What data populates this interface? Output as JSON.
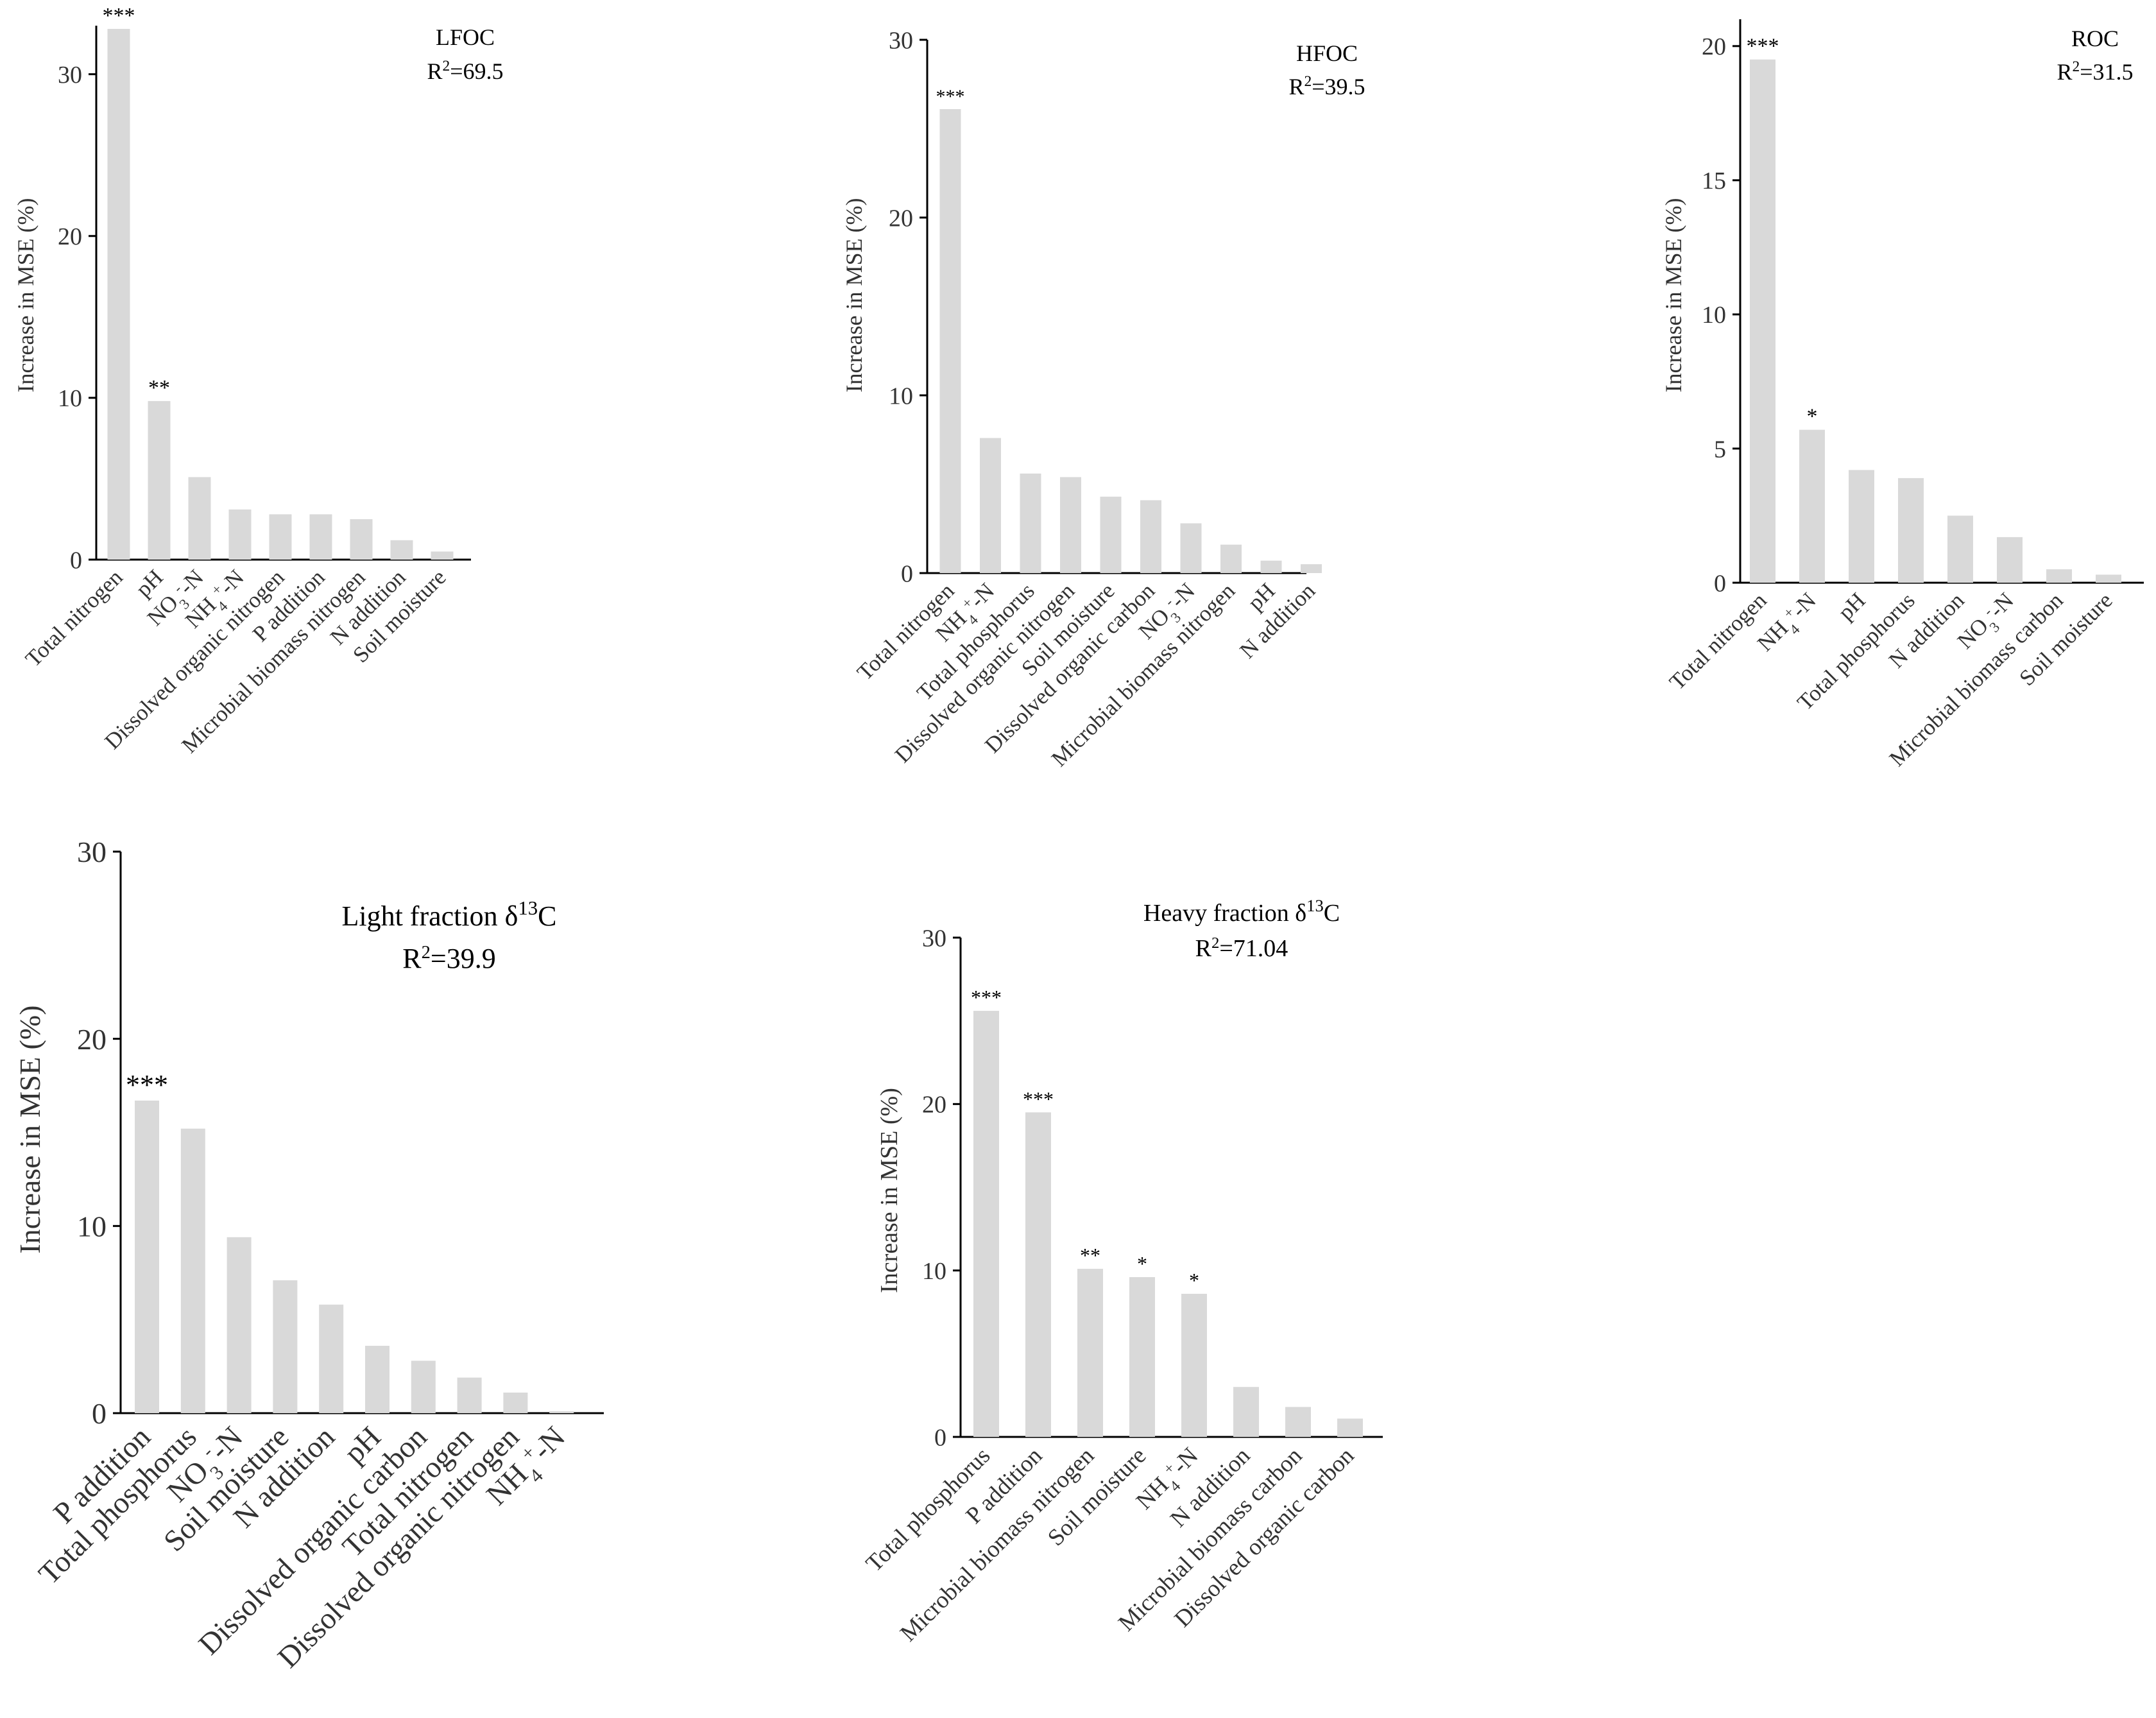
{
  "figure_title": "Random forest variable importance panels",
  "chart_data": [
    {
      "id": "lfoc",
      "type": "bar",
      "title": "LFOC",
      "r2_label": "R",
      "r2_sup": "2",
      "r2_value": "=69.5",
      "ylabel": "Increase in MSE (%)",
      "xlabel": "",
      "ylim": [
        0,
        33
      ],
      "yticks": [
        0,
        10,
        20,
        30
      ],
      "categories": [
        {
          "base": "Total nitrogen"
        },
        {
          "base": "pH"
        },
        {
          "base": "NO",
          "sub": "3",
          "sup": "-",
          "tail": "-N"
        },
        {
          "base": "NH",
          "sub": "4",
          "sup": "+",
          "tail": "-N"
        },
        {
          "base": "Dissolved organic nitrogen"
        },
        {
          "base": "P addition"
        },
        {
          "base": "Microbial biomass nitrogen"
        },
        {
          "base": "N addition"
        },
        {
          "base": "Soil moisture"
        }
      ],
      "values": [
        32.8,
        9.8,
        5.1,
        3.1,
        2.8,
        2.8,
        2.5,
        1.2,
        0.5
      ],
      "significance": [
        "***",
        "**",
        "",
        "",
        "",
        "",
        "",
        "",
        ""
      ]
    },
    {
      "id": "hfoc",
      "type": "bar",
      "title": "HFOC",
      "r2_label": "R",
      "r2_sup": "2",
      "r2_value": "=39.5",
      "ylabel": "Increase in MSE (%)",
      "xlabel": "",
      "ylim": [
        0,
        30
      ],
      "yticks": [
        0,
        10,
        20,
        30
      ],
      "categories": [
        {
          "base": "Total nitrogen"
        },
        {
          "base": "NH",
          "sub": "4",
          "sup": "+",
          "tail": "-N"
        },
        {
          "base": "Total phosphorus"
        },
        {
          "base": "Dissolved organic nitrogen"
        },
        {
          "base": "Soil moisture"
        },
        {
          "base": "Dissolved organic carbon"
        },
        {
          "base": "NO",
          "sub": "3",
          "sup": "-",
          "tail": "-N"
        },
        {
          "base": "Microbial biomass nitrogen"
        },
        {
          "base": "pH"
        },
        {
          "base": "N addition"
        }
      ],
      "values": [
        26.1,
        7.6,
        5.6,
        5.4,
        4.3,
        4.1,
        2.8,
        1.6,
        0.7,
        0.5
      ],
      "significance": [
        "***",
        "",
        "",
        "",
        "",
        "",
        "",
        "",
        "",
        ""
      ]
    },
    {
      "id": "roc",
      "type": "bar",
      "title": "ROC",
      "r2_label": "R",
      "r2_sup": "2",
      "r2_value": "=31.5",
      "ylabel": "Increase in MSE (%)",
      "xlabel": "",
      "ylim": [
        0,
        21
      ],
      "yticks": [
        0,
        5,
        10,
        15,
        20
      ],
      "categories": [
        {
          "base": "Total nitrogen"
        },
        {
          "base": "NH",
          "sub": "4",
          "sup": "+",
          "tail": "-N"
        },
        {
          "base": "pH"
        },
        {
          "base": "Total phosphorus"
        },
        {
          "base": "N addition"
        },
        {
          "base": "NO",
          "sub": "3",
          "sup": "-",
          "tail": "-N"
        },
        {
          "base": "Microbial biomass carbon"
        },
        {
          "base": "Soil moisture"
        }
      ],
      "values": [
        19.5,
        5.7,
        4.2,
        3.9,
        2.5,
        1.7,
        0.5,
        0.3
      ],
      "significance": [
        "***",
        "*",
        "",
        "",
        "",
        "",
        "",
        ""
      ]
    },
    {
      "id": "light-fraction",
      "type": "bar",
      "title": "Light fraction  δ",
      "title_sup": "13",
      "title_tail": "C",
      "r2_label": "R",
      "r2_sup": "2",
      "r2_value": "=39.9",
      "ylabel": "Increase in MSE (%)",
      "xlabel": "",
      "ylim": [
        0,
        30
      ],
      "yticks": [
        0,
        10,
        20,
        30
      ],
      "categories": [
        {
          "base": "P addition"
        },
        {
          "base": "Total phosphorus"
        },
        {
          "base": "NO",
          "sub": "3",
          "sup": "-",
          "tail": "-N"
        },
        {
          "base": "Soil moisture"
        },
        {
          "base": "N addition"
        },
        {
          "base": "pH"
        },
        {
          "base": "Dissolved organic carbon"
        },
        {
          "base": "Total nitrogen"
        },
        {
          "base": "Dissolved organic nitrogen"
        },
        {
          "base": "NH",
          "sub": "4",
          "sup": "+",
          "tail": "-N"
        }
      ],
      "values": [
        16.7,
        15.2,
        9.4,
        7.1,
        5.8,
        3.6,
        2.8,
        1.9,
        1.1,
        0.1
      ],
      "significance": [
        "***",
        "",
        "",
        "",
        "",
        "",
        "",
        "",
        "",
        ""
      ]
    },
    {
      "id": "heavy-fraction",
      "type": "bar",
      "title": "Heavy fraction  δ",
      "title_sup": "13",
      "title_tail": "C",
      "r2_label": "R",
      "r2_sup": "2",
      "r2_value": "=71.04",
      "ylabel": "Increase in MSE (%)",
      "xlabel": "",
      "ylim": [
        0,
        30
      ],
      "yticks": [
        0,
        10,
        20,
        30
      ],
      "categories": [
        {
          "base": "Total phosphorus"
        },
        {
          "base": "P addition"
        },
        {
          "base": "Microbial biomass nitrogen"
        },
        {
          "base": "Soil moisture"
        },
        {
          "base": "NH",
          "sub": "4",
          "sup": "+",
          "tail": "-N"
        },
        {
          "base": "N addition"
        },
        {
          "base": "Microbial biomass carbon"
        },
        {
          "base": "Dissolved organic carbon"
        }
      ],
      "values": [
        25.6,
        19.5,
        10.1,
        9.6,
        8.6,
        3.0,
        1.8,
        1.1
      ],
      "significance": [
        "***",
        "***",
        "**",
        "*",
        "*",
        "",
        "",
        ""
      ]
    }
  ]
}
